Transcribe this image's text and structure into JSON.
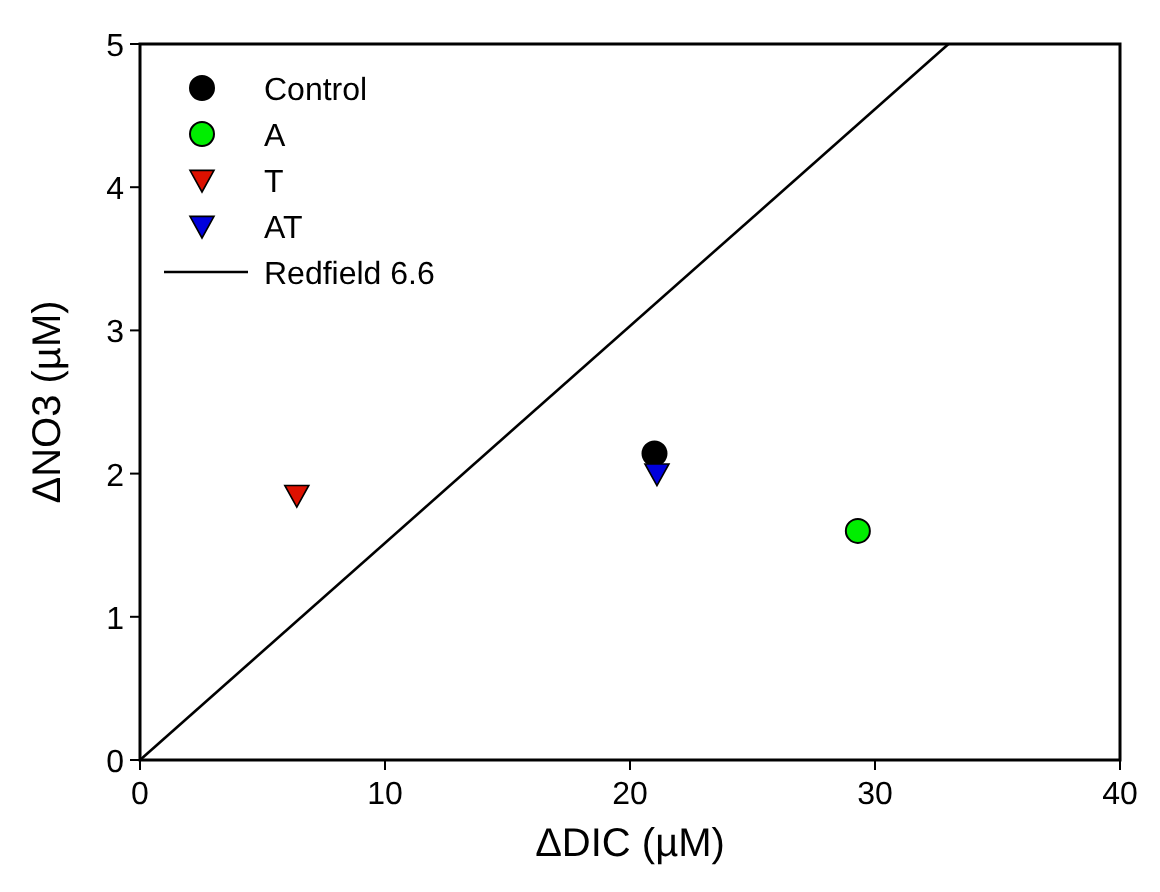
{
  "chart_data": {
    "type": "scatter",
    "xlabel": "ΔDIC (µM)",
    "ylabel": "ΔNO3 (µM)",
    "xlim": [
      0,
      40
    ],
    "xticks": [
      0,
      10,
      20,
      30,
      40
    ],
    "ylim": [
      0,
      5
    ],
    "yticks": [
      0,
      1,
      2,
      3,
      4,
      5
    ],
    "legend": "top left",
    "series": [
      {
        "name": "Control",
        "color": "#000000",
        "marker": "circle",
        "x": [
          21.0
        ],
        "values": [
          2.14
        ]
      },
      {
        "name": "A",
        "color": "#00ee00",
        "marker": "circle",
        "x": [
          29.3
        ],
        "values": [
          1.6
        ]
      },
      {
        "name": "T",
        "color": "#dd1100",
        "marker": "triangle",
        "x": [
          6.4
        ],
        "values": [
          1.85
        ]
      },
      {
        "name": "AT",
        "color": "#0000dd",
        "marker": "triangle",
        "x": [
          21.1
        ],
        "values": [
          2.0
        ]
      },
      {
        "name": "Redfield 6.6",
        "type": "line",
        "color": "#000000",
        "marker": "none",
        "x": [
          0,
          33
        ],
        "values": [
          0,
          5
        ]
      }
    ]
  }
}
